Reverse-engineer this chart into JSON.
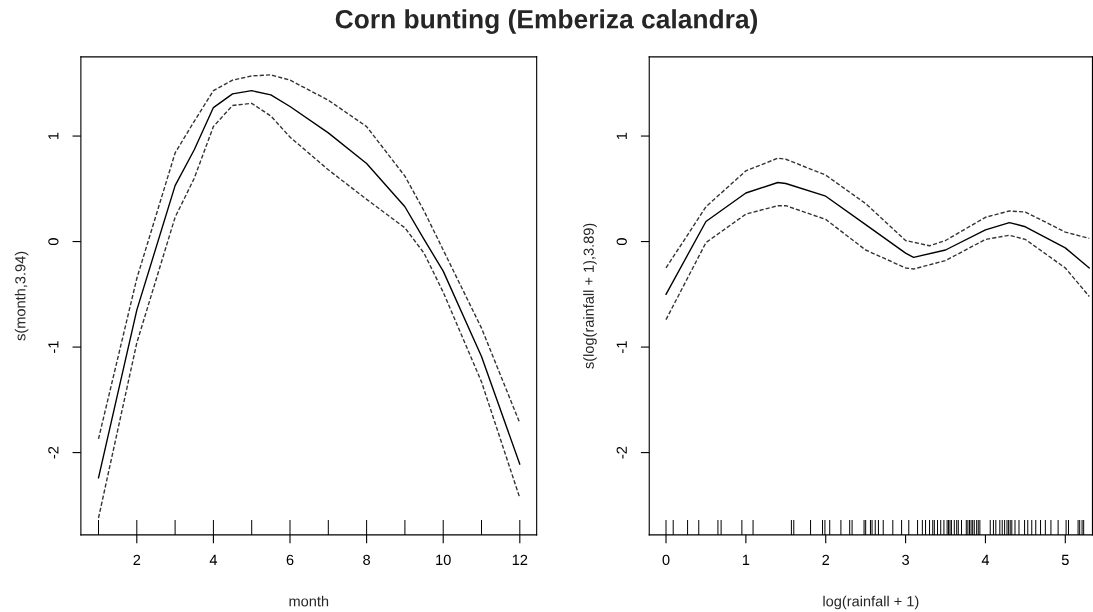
{
  "chart_data": [
    {
      "type": "line",
      "title": "Corn bunting (Emberiza calandra)",
      "xlabel": "month",
      "ylabel": "s(month,3.94)",
      "xlim": [
        0.54,
        12.44
      ],
      "ylim": [
        -2.78,
        1.75
      ],
      "xticks": [
        2,
        4,
        6,
        8,
        10,
        12
      ],
      "yticks": [
        -2,
        -1,
        0,
        1
      ],
      "grid": false,
      "legend": false,
      "series": [
        {
          "type": "line",
          "color": "#000000",
          "line_style": "solid",
          "x": [
            1,
            2,
            3,
            3.5,
            4,
            4.5,
            5,
            5.5,
            6,
            7,
            8,
            9,
            9.5,
            10,
            11,
            12
          ],
          "values": [
            -2.24,
            -0.65,
            0.53,
            0.87,
            1.27,
            1.4,
            1.43,
            1.39,
            1.28,
            1.03,
            0.74,
            0.33,
            0.02,
            -0.28,
            -1.09,
            -2.11
          ]
        },
        {
          "type": "line",
          "color": "#333333",
          "line_style": "dashed",
          "x": [
            1,
            2,
            3,
            3.5,
            4,
            4.5,
            5,
            5.5,
            6,
            7,
            8,
            9,
            9.5,
            10,
            11,
            12
          ],
          "values": [
            -1.87,
            -0.35,
            0.84,
            1.14,
            1.43,
            1.53,
            1.57,
            1.58,
            1.53,
            1.34,
            1.09,
            0.62,
            0.29,
            -0.08,
            -0.82,
            -1.72
          ]
        },
        {
          "type": "line",
          "color": "#333333",
          "line_style": "dashed",
          "x": [
            1,
            2,
            3,
            3.5,
            4,
            4.5,
            5,
            5.5,
            6,
            7,
            8,
            9,
            9.5,
            10,
            11,
            12
          ],
          "values": [
            -2.62,
            -0.96,
            0.23,
            0.6,
            1.09,
            1.29,
            1.31,
            1.19,
            0.99,
            0.68,
            0.4,
            0.13,
            -0.11,
            -0.48,
            -1.33,
            -2.43
          ]
        },
        {
          "type": "bar",
          "color": "#000000",
          "x": [
            1,
            2,
            3,
            4,
            5,
            6,
            7,
            8,
            9,
            10,
            11,
            12
          ],
          "values": [
            0.14,
            0.14,
            0.14,
            0.14,
            0.14,
            0.14,
            0.14,
            0.14,
            0.14,
            0.14,
            0.14,
            0.14
          ],
          "base": [
            -2.78,
            -2.78,
            -2.78,
            -2.78,
            -2.78,
            -2.78,
            -2.78,
            -2.78,
            -2.78,
            -2.78,
            -2.78,
            -2.78
          ]
        }
      ]
    },
    {
      "type": "line",
      "xlabel": "log(rainfall + 1)",
      "ylabel": "s(log(rainfall + 1),3.89)",
      "xlim": [
        -0.21,
        5.34
      ],
      "ylim": [
        -2.78,
        1.75
      ],
      "xticks": [
        0,
        1,
        2,
        3,
        4,
        5
      ],
      "yticks": [
        -2,
        -1,
        0,
        1
      ],
      "grid": false,
      "legend": false,
      "series": [
        {
          "type": "line",
          "color": "#000000",
          "line_style": "solid",
          "x": [
            0,
            0.5,
            1,
            1.4,
            1.5,
            2,
            2.5,
            3,
            3.1,
            3.5,
            4,
            4.3,
            4.5,
            5,
            5.3
          ],
          "values": [
            -0.5,
            0.19,
            0.46,
            0.56,
            0.55,
            0.43,
            0.16,
            -0.11,
            -0.15,
            -0.08,
            0.11,
            0.18,
            0.14,
            -0.06,
            -0.25
          ]
        },
        {
          "type": "line",
          "color": "#333333",
          "line_style": "dashed",
          "x": [
            0,
            0.5,
            1,
            1.4,
            1.5,
            2,
            2.5,
            3,
            3.3,
            3.5,
            4,
            4.3,
            4.5,
            5,
            5.3
          ],
          "values": [
            -0.25,
            0.33,
            0.67,
            0.79,
            0.78,
            0.63,
            0.36,
            0.01,
            -0.04,
            0.01,
            0.23,
            0.29,
            0.28,
            0.09,
            0.03
          ]
        },
        {
          "type": "line",
          "color": "#333333",
          "line_style": "dashed",
          "x": [
            0,
            0.5,
            1,
            1.4,
            1.5,
            2,
            2.5,
            3,
            3.1,
            3.5,
            4,
            4.3,
            4.5,
            5,
            5.3
          ],
          "values": [
            -0.74,
            -0.01,
            0.26,
            0.34,
            0.34,
            0.21,
            -0.08,
            -0.25,
            -0.26,
            -0.18,
            0.02,
            0.06,
            0.02,
            -0.25,
            -0.52
          ]
        },
        {
          "type": "bar",
          "color": "#000000",
          "x": [
            0,
            0.09,
            0.27,
            0.41,
            0.65,
            0.69,
            0.95,
            1.09,
            1.57,
            1.6,
            1.81,
            1.96,
            1.99,
            2.05,
            2.19,
            2.3,
            2.33,
            2.48,
            2.5,
            2.56,
            2.58,
            2.62,
            2.66,
            2.72,
            2.84,
            2.95,
            3.04,
            3.15,
            3.21,
            3.25,
            3.3,
            3.34,
            3.36,
            3.4,
            3.44,
            3.48,
            3.52,
            3.538,
            3.556,
            3.574,
            3.61,
            3.64,
            3.66,
            3.7,
            3.76,
            3.78,
            3.8,
            3.82,
            3.84,
            3.86,
            3.89,
            3.91,
            3.93,
            4.06,
            4.1,
            4.13,
            4.18,
            4.21,
            4.24,
            4.27,
            4.29,
            4.31,
            4.33,
            4.37,
            4.42,
            4.49,
            4.53,
            4.58,
            4.63,
            4.69,
            4.75,
            4.82,
            4.91,
            5.01,
            5.04,
            5.16,
            5.18,
            5.21,
            5.23
          ],
          "values": [
            0.14,
            0.14,
            0.14,
            0.14,
            0.14,
            0.14,
            0.14,
            0.14,
            0.14,
            0.14,
            0.14,
            0.14,
            0.14,
            0.14,
            0.14,
            0.14,
            0.14,
            0.14,
            0.14,
            0.14,
            0.14,
            0.14,
            0.14,
            0.14,
            0.14,
            0.14,
            0.14,
            0.14,
            0.14,
            0.14,
            0.14,
            0.14,
            0.14,
            0.14,
            0.14,
            0.14,
            0.14,
            0.14,
            0.14,
            0.14,
            0.14,
            0.14,
            0.14,
            0.14,
            0.14,
            0.14,
            0.14,
            0.14,
            0.14,
            0.14,
            0.14,
            0.14,
            0.14,
            0.14,
            0.14,
            0.14,
            0.14,
            0.14,
            0.14,
            0.14,
            0.14,
            0.14,
            0.14,
            0.14,
            0.14,
            0.14,
            0.14,
            0.14,
            0.14,
            0.14,
            0.14,
            0.14,
            0.14,
            0.14,
            0.14,
            0.14,
            0.14,
            0.14,
            0.14
          ],
          "base": [
            -2.78,
            -2.78,
            -2.78,
            -2.78,
            -2.78,
            -2.78,
            -2.78,
            -2.78,
            -2.78,
            -2.78,
            -2.78,
            -2.78,
            -2.78,
            -2.78,
            -2.78,
            -2.78,
            -2.78,
            -2.78,
            -2.78,
            -2.78,
            -2.78,
            -2.78,
            -2.78,
            -2.78,
            -2.78,
            -2.78,
            -2.78,
            -2.78,
            -2.78,
            -2.78,
            -2.78,
            -2.78,
            -2.78,
            -2.78,
            -2.78,
            -2.78,
            -2.78,
            -2.78,
            -2.78,
            -2.78,
            -2.78,
            -2.78,
            -2.78,
            -2.78,
            -2.78,
            -2.78,
            -2.78,
            -2.78,
            -2.78,
            -2.78,
            -2.78,
            -2.78,
            -2.78,
            -2.78,
            -2.78,
            -2.78,
            -2.78,
            -2.78,
            -2.78,
            -2.78,
            -2.78,
            -2.78,
            -2.78,
            -2.78,
            -2.78,
            -2.78,
            -2.78,
            -2.78,
            -2.78,
            -2.78,
            -2.78,
            -2.78,
            -2.78,
            -2.78,
            -2.78,
            -2.78,
            -2.78,
            -2.78,
            -2.78
          ]
        }
      ]
    }
  ]
}
